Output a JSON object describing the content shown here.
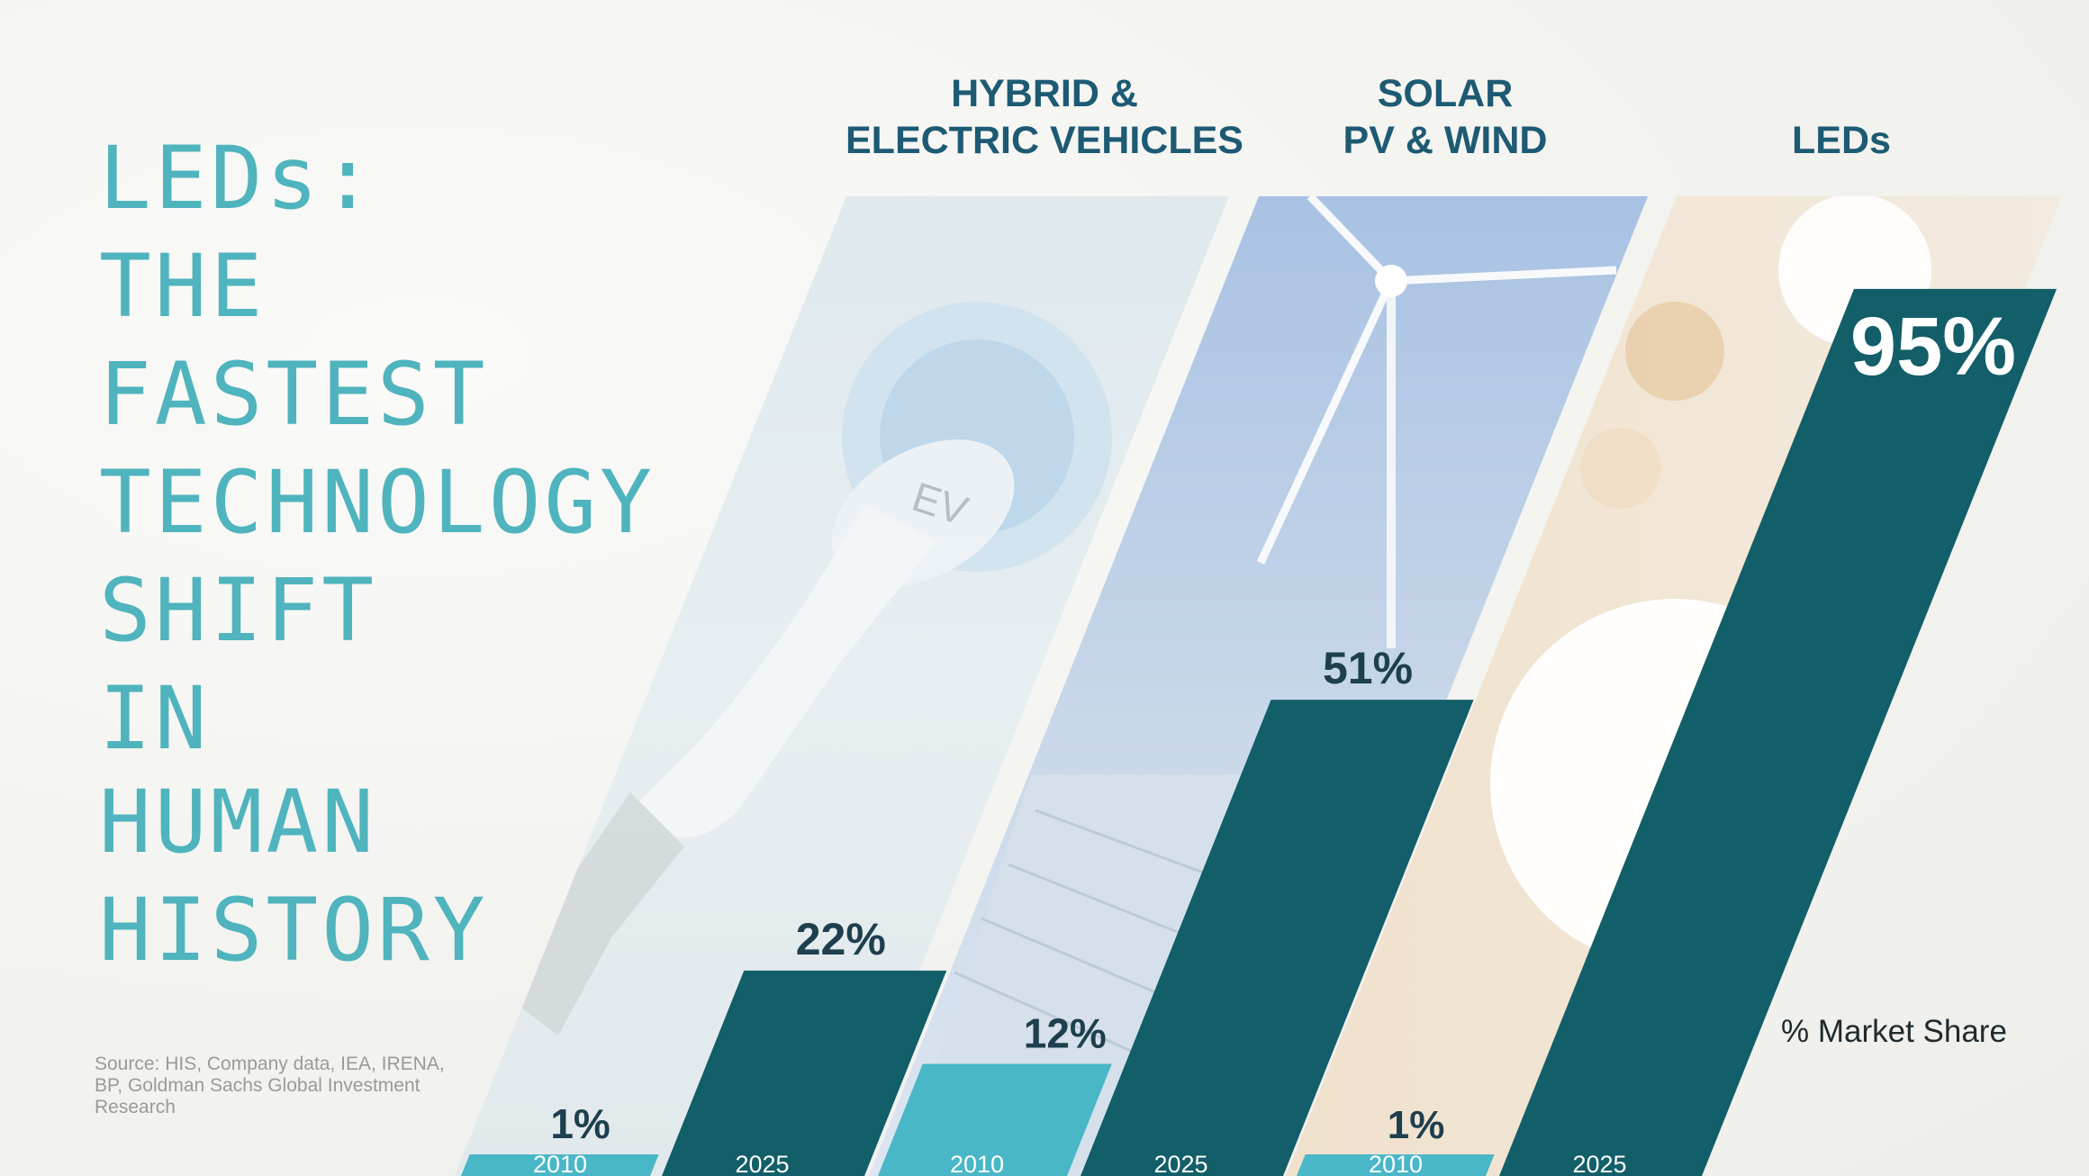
{
  "slide_title": [
    "LEDs:",
    "THE",
    "FASTEST",
    "TECHNOLOGY",
    "SHIFT",
    "IN",
    "HUMAN",
    "HISTORY"
  ],
  "source": "Source: HIS, Company data, IEA, IRENA, BP, Goldman Sachs Global Investment Research",
  "legend_note": "% Market Share",
  "colors": {
    "title": "#4fb4bd",
    "bar_2010": "#49b7c7",
    "bar_2025": "#125e69",
    "category_title": "#1d5a73",
    "value_label": "#1d3f4e"
  },
  "chart_data": {
    "type": "bar",
    "title": "",
    "ylabel": "% Market Share",
    "unit": "%",
    "ylim": [
      0,
      100
    ],
    "categories": [
      "HYBRID &\nELECTRIC VEHICLES",
      "SOLAR\nPV & WIND",
      "LEDs"
    ],
    "x_labels": [
      "2010",
      "2025"
    ],
    "series": [
      {
        "name": "2010",
        "values": [
          1,
          12,
          1
        ],
        "labels": [
          "1%",
          "12%",
          "1%"
        ]
      },
      {
        "name": "2025",
        "values": [
          22,
          51,
          95
        ],
        "labels": [
          "22%",
          "51%",
          "95%"
        ]
      }
    ]
  }
}
